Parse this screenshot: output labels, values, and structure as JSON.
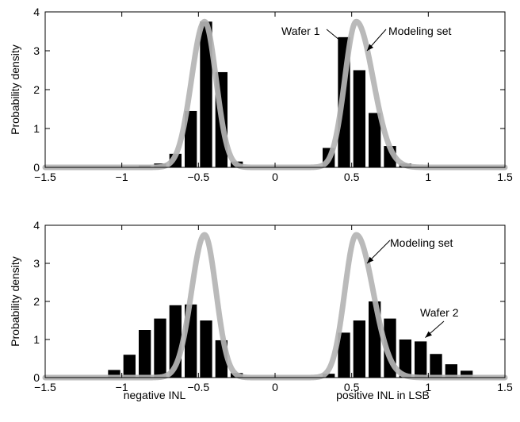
{
  "chart_data": [
    {
      "type": "bar",
      "title": "",
      "xlabel": "",
      "ylabel": "Probability density",
      "xlim": [
        -1.5,
        1.5
      ],
      "ylim": [
        0,
        4
      ],
      "xticks": [
        "-1.5",
        "-1",
        "-0.5",
        "0",
        "0.5",
        "1",
        "1.5"
      ],
      "yticks": [
        "0",
        "1",
        "2",
        "3",
        "4"
      ],
      "bar_width": 0.1,
      "series": [
        {
          "values": [
            {
              "x": -0.85,
              "y": 0.05
            },
            {
              "x": -0.75,
              "y": 0.1
            },
            {
              "x": -0.65,
              "y": 0.35
            },
            {
              "x": -0.55,
              "y": 1.45
            },
            {
              "x": -0.45,
              "y": 3.75
            },
            {
              "x": -0.35,
              "y": 2.45
            },
            {
              "x": -0.25,
              "y": 0.15
            },
            {
              "x": 0.35,
              "y": 0.5
            },
            {
              "x": 0.45,
              "y": 3.35
            },
            {
              "x": 0.55,
              "y": 2.5
            },
            {
              "x": 0.65,
              "y": 1.4
            },
            {
              "x": 0.75,
              "y": 0.55
            },
            {
              "x": 0.85,
              "y": 0.1
            }
          ]
        },
        {
          "name": "Modeling set",
          "type": "line",
          "color": "#b4b4b4",
          "peaks": [
            {
              "center": -0.46,
              "height": 3.75,
              "sigma_left": 0.085,
              "sigma_right": 0.075
            },
            {
              "center": 0.53,
              "height": 3.75,
              "sigma_left": 0.075,
              "sigma_right": 0.11
            }
          ]
        }
      ],
      "annotations": [
        {
          "text": "Wafer 1",
          "target": {
            "x": 0.46,
            "y": 3.15
          }
        },
        {
          "text": "Modeling set",
          "target": {
            "x": 0.6,
            "y": 3.0
          }
        }
      ]
    },
    {
      "type": "bar",
      "title": "",
      "xlabel_left": "negative INL",
      "xlabel_right": "positive INL in LSB",
      "ylabel": "Probability density",
      "xlim": [
        -1.5,
        1.5
      ],
      "ylim": [
        0,
        4
      ],
      "xticks": [
        "-1.5",
        "-1",
        "-0.5",
        "0",
        "0.5",
        "1",
        "1.5"
      ],
      "yticks": [
        "0",
        "1",
        "2",
        "3",
        "4"
      ],
      "bar_width": 0.1,
      "series": [
        {
          "values": [
            {
              "x": -1.05,
              "y": 0.2
            },
            {
              "x": -0.95,
              "y": 0.6
            },
            {
              "x": -0.85,
              "y": 1.25
            },
            {
              "x": -0.75,
              "y": 1.55
            },
            {
              "x": -0.65,
              "y": 1.9
            },
            {
              "x": -0.55,
              "y": 1.92
            },
            {
              "x": -0.45,
              "y": 1.5
            },
            {
              "x": -0.35,
              "y": 0.98
            },
            {
              "x": -0.25,
              "y": 0.12
            },
            {
              "x": 0.35,
              "y": 0.1
            },
            {
              "x": 0.45,
              "y": 1.18
            },
            {
              "x": 0.55,
              "y": 1.5
            },
            {
              "x": 0.65,
              "y": 2.0
            },
            {
              "x": 0.75,
              "y": 1.55
            },
            {
              "x": 0.85,
              "y": 1.0
            },
            {
              "x": 0.95,
              "y": 0.95
            },
            {
              "x": 1.05,
              "y": 0.62
            },
            {
              "x": 1.15,
              "y": 0.35
            },
            {
              "x": 1.25,
              "y": 0.18
            }
          ]
        },
        {
          "name": "Modeling set",
          "type": "line",
          "color": "#b4b4b4",
          "peaks": [
            {
              "center": -0.46,
              "height": 3.75,
              "sigma_left": 0.085,
              "sigma_right": 0.075
            },
            {
              "center": 0.53,
              "height": 3.75,
              "sigma_left": 0.075,
              "sigma_right": 0.11
            }
          ]
        }
      ],
      "annotations": [
        {
          "text": "Modeling set",
          "target": {
            "x": 0.6,
            "y": 3.0
          }
        },
        {
          "text": "Wafer 2",
          "target": {
            "x": 0.98,
            "y": 1.05
          }
        }
      ]
    }
  ]
}
